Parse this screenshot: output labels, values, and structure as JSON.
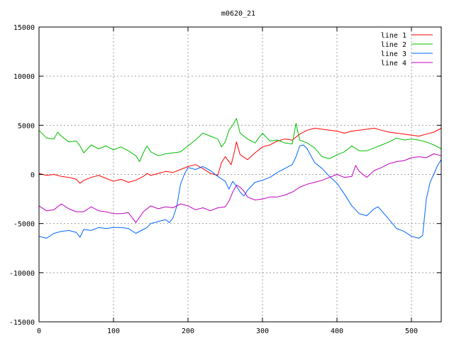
{
  "chart_data": {
    "type": "line",
    "title": "m0620_21",
    "xlabel": "",
    "ylabel": "",
    "xlim": [
      0,
      540
    ],
    "ylim": [
      -15000,
      15000
    ],
    "x_ticks": [
      0,
      100,
      200,
      300,
      400,
      500
    ],
    "y_ticks": [
      -15000,
      -10000,
      -5000,
      0,
      5000,
      10000,
      15000
    ],
    "grid": true,
    "legend_position": "top-right",
    "series": [
      {
        "name": "line 1",
        "color": "#ff0000",
        "points": [
          [
            0,
            100
          ],
          [
            10,
            -100
          ],
          [
            20,
            0
          ],
          [
            30,
            -200
          ],
          [
            40,
            -300
          ],
          [
            50,
            -500
          ],
          [
            55,
            -900
          ],
          [
            60,
            -600
          ],
          [
            70,
            -300
          ],
          [
            80,
            -100
          ],
          [
            90,
            -400
          ],
          [
            100,
            -700
          ],
          [
            110,
            -500
          ],
          [
            120,
            -800
          ],
          [
            130,
            -600
          ],
          [
            140,
            -200
          ],
          [
            145,
            100
          ],
          [
            150,
            -100
          ],
          [
            160,
            100
          ],
          [
            170,
            300
          ],
          [
            180,
            200
          ],
          [
            190,
            500
          ],
          [
            200,
            800
          ],
          [
            210,
            1000
          ],
          [
            220,
            600
          ],
          [
            230,
            100
          ],
          [
            240,
            -100
          ],
          [
            245,
            1200
          ],
          [
            250,
            1800
          ],
          [
            258,
            1000
          ],
          [
            262,
            2200
          ],
          [
            265,
            3300
          ],
          [
            270,
            2000
          ],
          [
            280,
            1500
          ],
          [
            290,
            2200
          ],
          [
            300,
            2800
          ],
          [
            310,
            3000
          ],
          [
            320,
            3400
          ],
          [
            330,
            3600
          ],
          [
            340,
            3500
          ],
          [
            350,
            4100
          ],
          [
            360,
            4500
          ],
          [
            370,
            4700
          ],
          [
            380,
            4600
          ],
          [
            390,
            4500
          ],
          [
            400,
            4400
          ],
          [
            410,
            4200
          ],
          [
            420,
            4400
          ],
          [
            430,
            4500
          ],
          [
            440,
            4600
          ],
          [
            450,
            4700
          ],
          [
            460,
            4500
          ],
          [
            470,
            4300
          ],
          [
            480,
            4200
          ],
          [
            490,
            4100
          ],
          [
            500,
            4000
          ],
          [
            510,
            3900
          ],
          [
            520,
            4100
          ],
          [
            530,
            4300
          ],
          [
            540,
            4700
          ]
        ]
      },
      {
        "name": "line 2",
        "color": "#00c000",
        "points": [
          [
            0,
            4500
          ],
          [
            10,
            3700
          ],
          [
            20,
            3600
          ],
          [
            25,
            4300
          ],
          [
            30,
            3900
          ],
          [
            40,
            3300
          ],
          [
            50,
            3400
          ],
          [
            55,
            2900
          ],
          [
            60,
            2200
          ],
          [
            70,
            3000
          ],
          [
            80,
            2600
          ],
          [
            90,
            2900
          ],
          [
            100,
            2500
          ],
          [
            110,
            2800
          ],
          [
            120,
            2400
          ],
          [
            130,
            1900
          ],
          [
            135,
            1300
          ],
          [
            140,
            2200
          ],
          [
            145,
            2900
          ],
          [
            150,
            2300
          ],
          [
            160,
            1900
          ],
          [
            170,
            2100
          ],
          [
            180,
            2200
          ],
          [
            190,
            2300
          ],
          [
            200,
            2900
          ],
          [
            210,
            3500
          ],
          [
            220,
            4200
          ],
          [
            230,
            3900
          ],
          [
            240,
            3600
          ],
          [
            245,
            2800
          ],
          [
            250,
            3300
          ],
          [
            255,
            4500
          ],
          [
            260,
            5000
          ],
          [
            265,
            5700
          ],
          [
            270,
            4200
          ],
          [
            280,
            3600
          ],
          [
            290,
            3200
          ],
          [
            300,
            4200
          ],
          [
            310,
            3400
          ],
          [
            320,
            3500
          ],
          [
            330,
            3200
          ],
          [
            340,
            3100
          ],
          [
            345,
            5200
          ],
          [
            350,
            3500
          ],
          [
            360,
            3200
          ],
          [
            370,
            2700
          ],
          [
            380,
            1800
          ],
          [
            390,
            1600
          ],
          [
            400,
            2000
          ],
          [
            410,
            2300
          ],
          [
            420,
            2900
          ],
          [
            430,
            2400
          ],
          [
            440,
            2400
          ],
          [
            450,
            2700
          ],
          [
            460,
            3000
          ],
          [
            470,
            3300
          ],
          [
            480,
            3700
          ],
          [
            490,
            3500
          ],
          [
            500,
            3600
          ],
          [
            510,
            3500
          ],
          [
            520,
            3300
          ],
          [
            530,
            3000
          ],
          [
            540,
            2600
          ]
        ]
      },
      {
        "name": "line 3",
        "color": "#0066ff",
        "points": [
          [
            0,
            -6300
          ],
          [
            10,
            -6500
          ],
          [
            20,
            -6000
          ],
          [
            30,
            -5800
          ],
          [
            40,
            -5700
          ],
          [
            50,
            -5900
          ],
          [
            55,
            -6400
          ],
          [
            60,
            -5600
          ],
          [
            70,
            -5700
          ],
          [
            80,
            -5400
          ],
          [
            90,
            -5500
          ],
          [
            100,
            -5400
          ],
          [
            110,
            -5400
          ],
          [
            120,
            -5500
          ],
          [
            130,
            -6000
          ],
          [
            140,
            -5600
          ],
          [
            145,
            -5400
          ],
          [
            150,
            -5000
          ],
          [
            160,
            -4800
          ],
          [
            170,
            -4600
          ],
          [
            175,
            -4900
          ],
          [
            180,
            -4400
          ],
          [
            185,
            -3200
          ],
          [
            190,
            -1000
          ],
          [
            195,
            0
          ],
          [
            200,
            700
          ],
          [
            210,
            500
          ],
          [
            220,
            800
          ],
          [
            230,
            400
          ],
          [
            240,
            -200
          ],
          [
            250,
            -700
          ],
          [
            255,
            -1500
          ],
          [
            260,
            -700
          ],
          [
            265,
            -1200
          ],
          [
            270,
            -1800
          ],
          [
            275,
            -2200
          ],
          [
            280,
            -1600
          ],
          [
            290,
            -800
          ],
          [
            300,
            -600
          ],
          [
            310,
            -300
          ],
          [
            320,
            200
          ],
          [
            330,
            600
          ],
          [
            340,
            1000
          ],
          [
            345,
            1800
          ],
          [
            350,
            2900
          ],
          [
            355,
            3000
          ],
          [
            360,
            2600
          ],
          [
            370,
            1200
          ],
          [
            380,
            600
          ],
          [
            390,
            -200
          ],
          [
            400,
            -900
          ],
          [
            410,
            -2000
          ],
          [
            420,
            -3200
          ],
          [
            430,
            -4000
          ],
          [
            440,
            -4200
          ],
          [
            450,
            -3500
          ],
          [
            455,
            -3300
          ],
          [
            460,
            -3700
          ],
          [
            470,
            -4600
          ],
          [
            480,
            -5500
          ],
          [
            490,
            -5800
          ],
          [
            500,
            -6300
          ],
          [
            510,
            -6500
          ],
          [
            515,
            -6200
          ],
          [
            520,
            -2500
          ],
          [
            525,
            -800
          ],
          [
            530,
            0
          ],
          [
            535,
            900
          ],
          [
            540,
            1500
          ]
        ]
      },
      {
        "name": "line 4",
        "color": "#c000c0",
        "points": [
          [
            0,
            -3200
          ],
          [
            10,
            -3700
          ],
          [
            20,
            -3600
          ],
          [
            30,
            -3000
          ],
          [
            40,
            -3500
          ],
          [
            50,
            -3800
          ],
          [
            60,
            -3800
          ],
          [
            70,
            -3300
          ],
          [
            80,
            -3700
          ],
          [
            90,
            -3800
          ],
          [
            100,
            -4000
          ],
          [
            110,
            -4000
          ],
          [
            120,
            -3900
          ],
          [
            130,
            -4900
          ],
          [
            140,
            -3800
          ],
          [
            150,
            -3200
          ],
          [
            160,
            -3500
          ],
          [
            170,
            -3300
          ],
          [
            180,
            -3400
          ],
          [
            190,
            -3000
          ],
          [
            200,
            -3200
          ],
          [
            210,
            -3600
          ],
          [
            220,
            -3400
          ],
          [
            230,
            -3700
          ],
          [
            240,
            -3400
          ],
          [
            250,
            -3300
          ],
          [
            255,
            -2700
          ],
          [
            260,
            -1800
          ],
          [
            265,
            -1100
          ],
          [
            270,
            -1300
          ],
          [
            275,
            -1700
          ],
          [
            280,
            -2300
          ],
          [
            290,
            -2600
          ],
          [
            300,
            -2500
          ],
          [
            310,
            -2300
          ],
          [
            320,
            -2300
          ],
          [
            330,
            -2100
          ],
          [
            340,
            -1800
          ],
          [
            350,
            -1300
          ],
          [
            360,
            -1000
          ],
          [
            370,
            -800
          ],
          [
            380,
            -600
          ],
          [
            390,
            -300
          ],
          [
            400,
            0
          ],
          [
            410,
            -300
          ],
          [
            420,
            -200
          ],
          [
            425,
            900
          ],
          [
            430,
            300
          ],
          [
            440,
            -300
          ],
          [
            450,
            400
          ],
          [
            460,
            700
          ],
          [
            470,
            1100
          ],
          [
            480,
            1300
          ],
          [
            490,
            1400
          ],
          [
            500,
            1700
          ],
          [
            510,
            1800
          ],
          [
            520,
            1700
          ],
          [
            530,
            2100
          ],
          [
            540,
            1900
          ]
        ]
      }
    ]
  }
}
